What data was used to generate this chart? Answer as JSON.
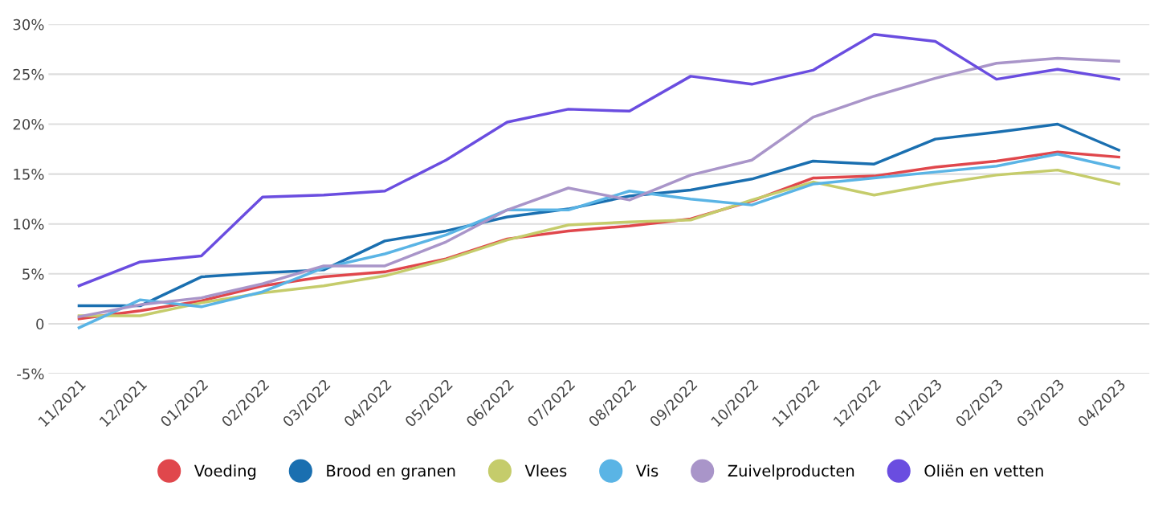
{
  "chart_data": {
    "type": "line",
    "categories": [
      "11/2021",
      "12/2021",
      "01/2022",
      "02/2022",
      "03/2022",
      "04/2022",
      "05/2022",
      "06/2022",
      "07/2022",
      "08/2022",
      "09/2022",
      "10/2022",
      "11/2022",
      "12/2022",
      "01/2023",
      "02/2023",
      "03/2023",
      "04/2023"
    ],
    "series": [
      {
        "name": "Voeding",
        "color": "#e0474c",
        "values": [
          0.5,
          1.3,
          2.3,
          3.8,
          4.7,
          5.2,
          6.5,
          8.5,
          9.3,
          9.8,
          10.5,
          12.3,
          14.6,
          14.8,
          15.7,
          16.3,
          17.2,
          16.7
        ]
      },
      {
        "name": "Brood en granen",
        "color": "#1a6fb0",
        "values": [
          1.8,
          1.8,
          4.7,
          5.1,
          5.4,
          8.3,
          9.3,
          10.7,
          11.5,
          12.8,
          13.4,
          14.5,
          16.3,
          16.0,
          18.5,
          19.2,
          20.0,
          17.4
        ]
      },
      {
        "name": "Vlees",
        "color": "#c5cc6b",
        "values": [
          0.8,
          0.8,
          2.1,
          3.1,
          3.8,
          4.8,
          6.4,
          8.4,
          9.9,
          10.2,
          10.4,
          12.4,
          14.2,
          12.9,
          14.0,
          14.9,
          15.4,
          14.0
        ]
      },
      {
        "name": "Vis",
        "color": "#5ab4e5",
        "values": [
          -0.4,
          2.4,
          1.7,
          3.2,
          5.6,
          7.0,
          8.9,
          11.4,
          11.4,
          13.3,
          12.5,
          11.9,
          14.0,
          14.6,
          15.2,
          15.8,
          17.0,
          15.6
        ]
      },
      {
        "name": "Zuivelproducten",
        "color": "#a995c9",
        "values": [
          0.7,
          1.9,
          2.6,
          4.0,
          5.8,
          5.8,
          8.2,
          11.4,
          13.6,
          12.4,
          14.9,
          16.4,
          20.7,
          22.8,
          24.6,
          26.1,
          26.6,
          26.3
        ]
      },
      {
        "name": "Oliën en vetten",
        "color": "#6a4de0",
        "values": [
          3.8,
          6.2,
          6.8,
          12.7,
          12.9,
          13.3,
          16.4,
          20.2,
          21.5,
          21.3,
          24.8,
          24.0,
          25.4,
          29.0,
          28.3,
          24.5,
          25.5,
          24.5
        ]
      }
    ],
    "ylim": [
      -5,
      30
    ],
    "yticks": [
      {
        "value": -5,
        "label": "-5%"
      },
      0,
      {
        "value": 5,
        "label": "5%"
      },
      {
        "value": 10,
        "label": "10%"
      },
      {
        "value": 15,
        "label": "15%"
      },
      {
        "value": 20,
        "label": "20%"
      },
      {
        "value": 25,
        "label": "25%"
      },
      {
        "value": 30,
        "label": "30%"
      }
    ],
    "grid": "y",
    "legend": "bottom",
    "marker": "none",
    "line_style": "solid"
  }
}
